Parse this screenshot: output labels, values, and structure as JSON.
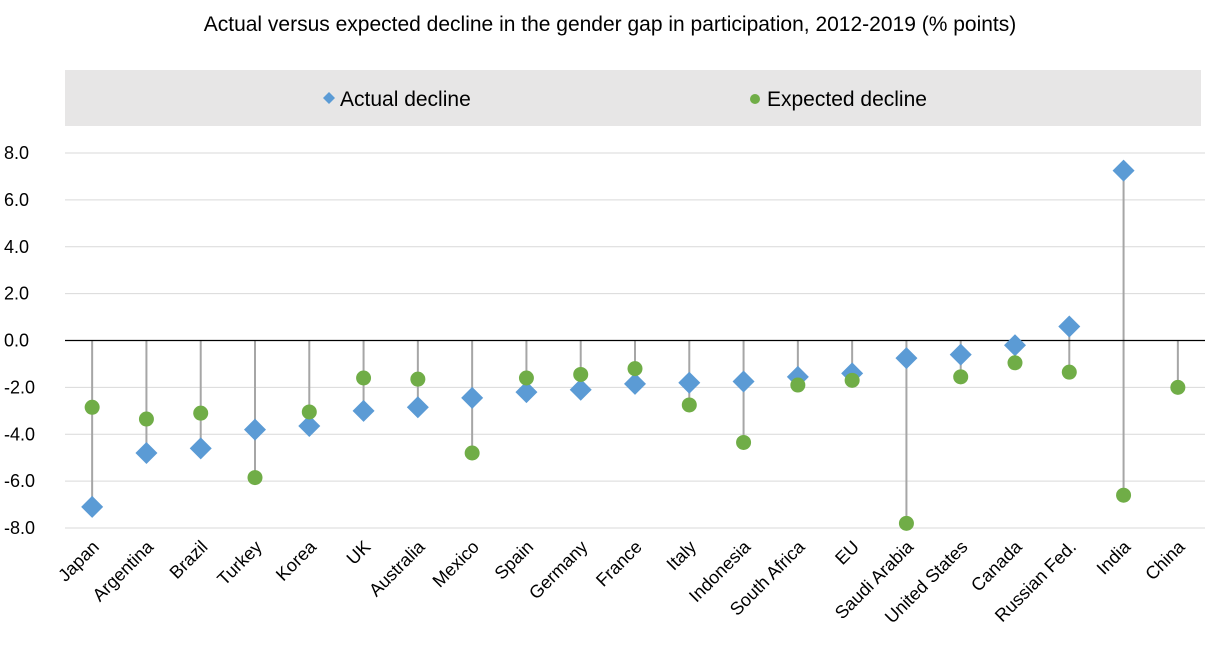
{
  "chart_data": {
    "type": "scatter",
    "title": "Actual versus expected decline in the gender gap in participation, 2012-2019 (% points)",
    "xlabel": "",
    "ylabel": "",
    "ylim": [
      -8.0,
      8.0
    ],
    "yticks": [
      "8.0",
      "6.0",
      "4.0",
      "2.0",
      "0.0",
      "-2.0",
      "-4.0",
      "-6.0",
      "-8.0"
    ],
    "ytick_values": [
      8,
      6,
      4,
      2,
      0,
      -2,
      -4,
      -6,
      -8
    ],
    "grid": "horizontal",
    "legend_position": "top",
    "categories": [
      "Japan",
      "Argentina",
      "Brazil",
      "Turkey",
      "Korea",
      "UK",
      "Australia",
      "Mexico",
      "Spain",
      "Germany",
      "France",
      "Italy",
      "Indonesia",
      "South Africa",
      "EU",
      "Saudi Arabia",
      "United States",
      "Canada",
      "Russian Fed.",
      "India",
      "China"
    ],
    "series": [
      {
        "name": "Actual decline",
        "marker": "diamond",
        "color": "#5B9BD5",
        "values": [
          -7.1,
          -4.8,
          -4.6,
          -3.8,
          -3.65,
          -3.0,
          -2.85,
          -2.45,
          -2.2,
          -2.1,
          -1.85,
          -1.8,
          -1.75,
          -1.55,
          -1.4,
          -0.75,
          -0.6,
          -0.2,
          0.6,
          7.25,
          null
        ]
      },
      {
        "name": "Expected decline",
        "marker": "circle",
        "color": "#70AD47",
        "values": [
          -2.85,
          -3.35,
          -3.1,
          -5.85,
          -3.05,
          -1.6,
          -1.65,
          -4.8,
          -1.6,
          -1.45,
          -1.2,
          -2.75,
          -4.35,
          -1.9,
          -1.7,
          -7.8,
          -1.55,
          -0.95,
          -1.35,
          -6.6,
          -2.0
        ]
      }
    ],
    "colors": {
      "connector": "#A6A6A6",
      "grid": "#D9D9D9",
      "legend_bg": "#E7E6E6",
      "zero_line": "#000000"
    }
  }
}
